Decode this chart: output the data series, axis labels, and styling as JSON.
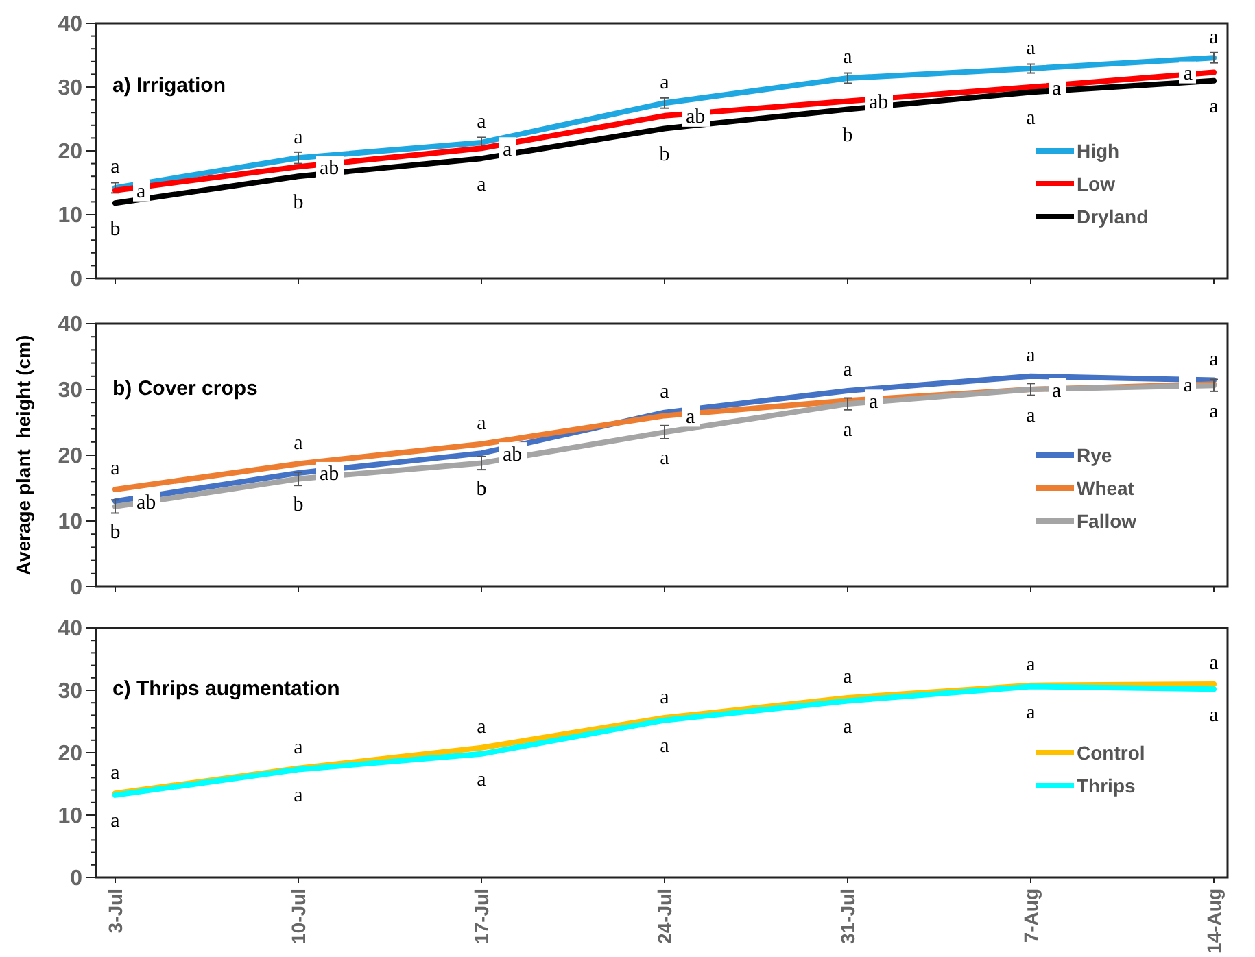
{
  "chart_data": [
    {
      "type": "line",
      "title": "a) Irrigation",
      "categories": [
        null,
        null,
        null,
        null,
        null,
        null,
        null
      ],
      "ylim": [
        0,
        40
      ],
      "yticks": [
        0,
        10,
        20,
        30,
        40
      ],
      "tick_labels": "y",
      "legend": "right",
      "series": [
        {
          "name": "High",
          "color": "#1ea7e1",
          "values": [
            14.2,
            18.9,
            21.3,
            27.5,
            31.4,
            32.9,
            34.6
          ],
          "errors": [
            0.8,
            0.9,
            0.8,
            0.8,
            0.8,
            0.7,
            0.8
          ],
          "value_labels": [
            "a",
            "a",
            "a",
            "a",
            "a",
            "a",
            "a"
          ]
        },
        {
          "name": "Low",
          "color": "#ff0000",
          "values": [
            13.8,
            17.5,
            20.4,
            25.5,
            27.8,
            30.0,
            32.3
          ],
          "value_labels": [
            "a",
            "ab",
            "a",
            "ab",
            "ab",
            "a",
            "a"
          ]
        },
        {
          "name": "Dryland",
          "color": "#000000",
          "values": [
            11.8,
            16.0,
            18.8,
            23.5,
            26.5,
            29.2,
            31.0
          ],
          "value_labels": [
            "b",
            "b",
            "a",
            "b",
            "b",
            "a",
            "a"
          ]
        }
      ]
    },
    {
      "type": "line",
      "title": "b) Cover crops",
      "ylabel": "Average plant  height (cm)",
      "categories": [
        null,
        null,
        null,
        null,
        null,
        null,
        null
      ],
      "ylim": [
        0,
        40
      ],
      "yticks": [
        0,
        10,
        20,
        30,
        40
      ],
      "tick_labels": "y",
      "legend": "right",
      "series": [
        {
          "name": "Rye",
          "color": "#4472c4",
          "values": [
            13.0,
            17.3,
            20.3,
            26.5,
            29.8,
            32.0,
            31.4
          ],
          "value_labels": [
            "ab",
            "ab",
            "ab",
            "a",
            "a",
            "a",
            "a"
          ]
        },
        {
          "name": "Wheat",
          "color": "#ed7d31",
          "values": [
            14.8,
            18.7,
            21.7,
            26.0,
            28.3,
            30.0,
            30.8
          ],
          "value_labels": [
            "a",
            "a",
            "a",
            "a",
            "a",
            "a",
            "a"
          ]
        },
        {
          "name": "Fallow",
          "color": "#a5a5a5",
          "values": [
            12.2,
            16.4,
            18.8,
            23.5,
            27.8,
            30.0,
            30.6
          ],
          "errors": [
            1.0,
            1.0,
            1.0,
            1.0,
            0.9,
            0.9,
            0.9
          ],
          "value_labels": [
            "b",
            "b",
            "b",
            "a",
            "a",
            "a",
            "a"
          ]
        }
      ]
    },
    {
      "type": "line",
      "title": "c) Thrips augmentation",
      "categories": [
        "3-Jul",
        "10-Jul",
        "17-Jul",
        "24-Jul",
        "31-Jul",
        "7-Aug",
        "14-Aug"
      ],
      "ylim": [
        0,
        40
      ],
      "yticks": [
        0,
        10,
        20,
        30,
        40
      ],
      "legend": "right",
      "series": [
        {
          "name": "Control",
          "color": "#ffc000",
          "values": [
            13.5,
            17.5,
            20.8,
            25.6,
            28.8,
            30.8,
            31.0
          ],
          "value_labels": [
            "a",
            "a",
            "a",
            "a",
            "a",
            "a",
            "a"
          ]
        },
        {
          "name": "Thrips",
          "color": "#00ffff",
          "values": [
            13.2,
            17.3,
            19.8,
            25.2,
            28.3,
            30.6,
            30.2
          ],
          "value_labels": [
            "a",
            "a",
            "a",
            "a",
            "a",
            "a",
            "a"
          ]
        }
      ]
    }
  ]
}
